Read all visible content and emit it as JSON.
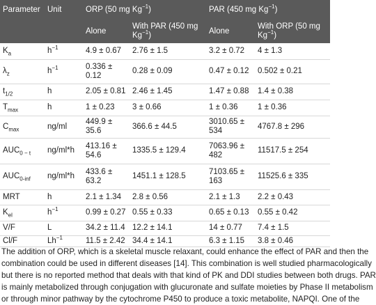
{
  "table": {
    "header": [
      [
        {
          "text": "Parameter"
        },
        {
          "text": "Unit"
        },
        {
          "text": "ORP (50 mg Kg",
          "sup": "−1",
          "after": ")"
        },
        {
          "text": "PAR (450 mg Kg",
          "sup": "−1",
          "after": ")"
        }
      ],
      [
        {
          "text": "Alone"
        },
        {
          "text": "With PAR (450 mg Kg",
          "sup": "−1",
          "after": ")"
        },
        {
          "text": "Alone"
        },
        {
          "text": "With ORP (50 mg Kg",
          "sup": "−1",
          "after": ")"
        }
      ]
    ],
    "rows": [
      {
        "param": {
          "base": "K",
          "sub": "a"
        },
        "unit": {
          "base": "h",
          "sup": "−1"
        },
        "cells": [
          "4.9 ± 0.67",
          "2.76 ± 1.5",
          "3.2 ± 0.72",
          "4 ± 1.3"
        ]
      },
      {
        "param": {
          "base": "λ",
          "sub": "z"
        },
        "unit": {
          "base": "h",
          "sup": "−1"
        },
        "cells": [
          "0.336 ± 0.12",
          "0.28 ± 0.09",
          "0.47 ± 0.12",
          "0.502 ± 0.21"
        ]
      },
      {
        "param": {
          "base": "t",
          "sub": "1/2"
        },
        "unit": {
          "base": "h"
        },
        "cells": [
          "2.05 ± 0.81",
          "2.46 ± 1.45",
          "1.47 ± 0.88",
          "1.4 ± 0.38"
        ]
      },
      {
        "param": {
          "base": "T",
          "sub": "max"
        },
        "unit": {
          "base": "h"
        },
        "cells": [
          "1 ± 0.23",
          "3 ± 0.66",
          "1 ± 0.36",
          "1 ± 0.36"
        ]
      },
      {
        "param": {
          "base": "C",
          "sub": "max"
        },
        "unit": {
          "base": "ng/ml"
        },
        "cells": [
          "449.9 ± 35.6",
          "366.6 ± 44.5",
          "3010.65 ± 534",
          "4767.8 ± 296"
        ]
      },
      {
        "param": {
          "base": "AUC",
          "sub": "0 − t"
        },
        "unit": {
          "base": "ng/ml*h"
        },
        "cells": [
          "413.16 ± 54.6",
          "1335.5 ± 129.4",
          "7063.96 ± 482",
          "11517.5 ± 254"
        ]
      },
      {
        "param": {
          "base": "AUC",
          "sub": "0-inf"
        },
        "unit": {
          "base": "ng/ml*h"
        },
        "cells": [
          "433.6 ± 63.2",
          "1451.1 ± 128.5",
          "7103.65 ± 163",
          "11525.6 ± 335"
        ]
      },
      {
        "param": {
          "base": "MRT"
        },
        "unit": {
          "base": "h"
        },
        "cells": [
          "2.1 ± 1.34",
          "2.8 ± 0.56",
          "2.1 ± 1.3",
          "2.2 ± 0.43"
        ]
      },
      {
        "param": {
          "base": "K",
          "sub": "el"
        },
        "unit": {
          "base": "h",
          "sup": "−1"
        },
        "cells": [
          "0.99 ± 0.27",
          "0.55 ± 0.33",
          "0.65 ± 0.13",
          "0.55 ± 0.42"
        ]
      },
      {
        "param": {
          "base": "V/F"
        },
        "unit": {
          "base": "L"
        },
        "cells": [
          "34.2 ± 11.4",
          "12.2 ± 14.1",
          "14 ± 0.77",
          "7.4 ± 1.5"
        ]
      },
      {
        "param": {
          "base": "Cl/F"
        },
        "unit": {
          "base": "Lh",
          "sup": "−1"
        },
        "cells": [
          "11.5 ± 2.42",
          "34.4 ± 14.1",
          "6.3 ± 1.15",
          "3.8 ± 0.46"
        ]
      }
    ]
  },
  "paragraph": [
    "The addition of ORP, which is a skeletal muscle relaxant, could enhance the effect of PAR and then the",
    "combination could be used in different diseases [14]. This combination is well studied pharmacologically",
    "but there is no reported method that deals with that kind of PK and DDI studies between both drugs. PAR",
    "is mainly metabolized through conjugation with glucuronate and sulfate moieties by Phase II metabolism",
    "or through minor pathway by the cytochrome P450 to produce a toxic metabolite, NAPQI. One of the"
  ]
}
